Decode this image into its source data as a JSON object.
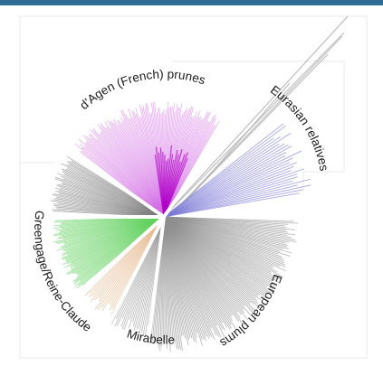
{
  "colors": {
    "top_bar": "#2e6c93",
    "background": "#ffffff",
    "faint_frame": "#e8e8e8",
    "branch_grey": "#7a7a7a",
    "prunes": "#d36ee6",
    "prunes_deep": "#b000c8",
    "eurasian": "#7d79d6",
    "reine_claude": "#63d25f",
    "mirabelles": "#e3b184",
    "european": "#8f8f8f"
  },
  "clades": [
    {
      "key": "prunes",
      "label": "d'Agen (French) prunes"
    },
    {
      "key": "eurasian",
      "label": "Eurasian relatives"
    },
    {
      "key": "european",
      "label": "European plums"
    },
    {
      "key": "mirabelles",
      "label": "Mirabelles"
    },
    {
      "key": "reine_claude",
      "label": "Greengage/Reine-Claude"
    }
  ]
}
